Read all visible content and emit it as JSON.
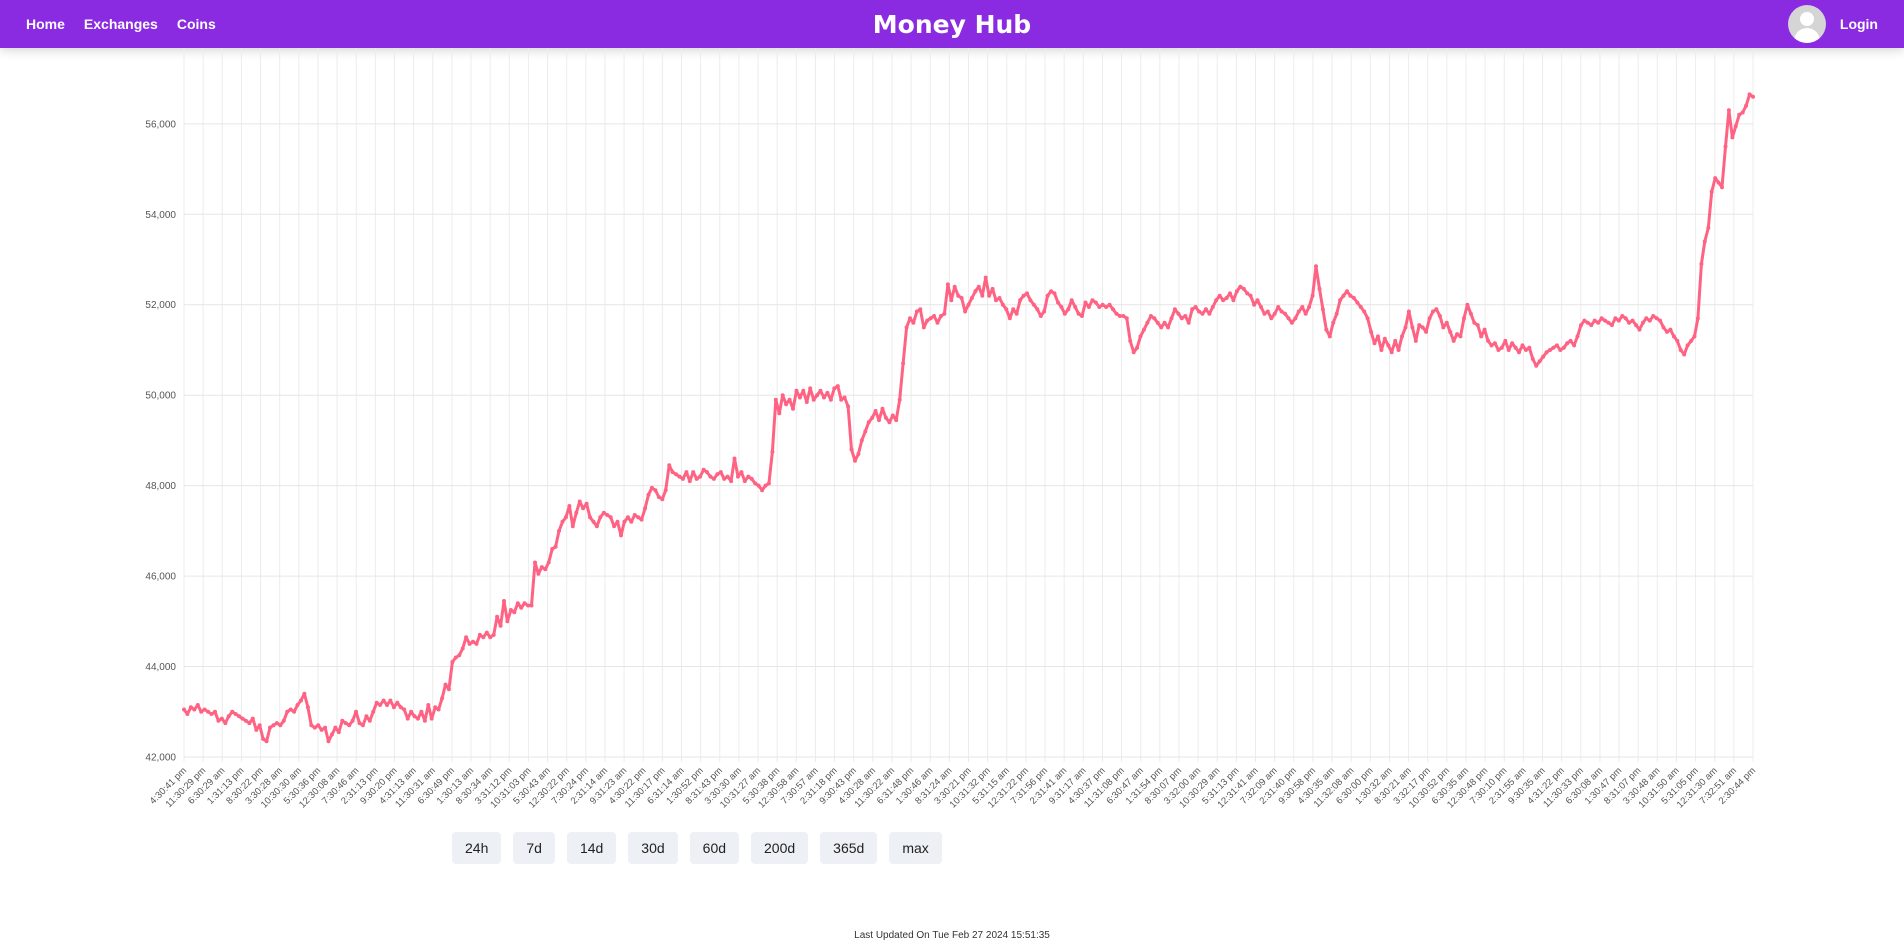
{
  "nav": {
    "links": [
      "Home",
      "Exchanges",
      "Coins"
    ],
    "brand": "Money Hub",
    "login": "Login"
  },
  "colors": {
    "navbar": "#8a2be2",
    "series": "#ff6384"
  },
  "range_buttons": [
    "24h",
    "7d",
    "14d",
    "30d",
    "60d",
    "200d",
    "365d",
    "max"
  ],
  "footer": {
    "last_updated": "Last Updated On Tue Feb 27 2024 15:51:35"
  },
  "chart_data": {
    "type": "line",
    "grid": true,
    "legend": "none",
    "ylim": [
      42000,
      57500
    ],
    "y_ticks": [
      42000,
      44000,
      46000,
      48000,
      50000,
      52000,
      54000,
      56000
    ],
    "y_tick_labels": [
      "42,000",
      "44,000",
      "46,000",
      "48,000",
      "50,000",
      "52,000",
      "54,000",
      "56,000"
    ],
    "x_tick_labels": [
      "4:30:41 pm",
      "11:30:29 pm",
      "6:30:29 am",
      "1:31:13 pm",
      "8:30:22 pm",
      "3:30:28 am",
      "10:30:30 am",
      "5:30:36 pm",
      "12:30:08 am",
      "7:30:46 am",
      "2:31:13 pm",
      "9:30:20 pm",
      "4:31:13 am",
      "11:30:31 am",
      "6:30:49 pm",
      "1:30:13 am",
      "8:30:34 am",
      "3:31:12 pm",
      "10:31:03 pm",
      "5:30:43 am",
      "12:30:22 pm",
      "7:30:24 pm",
      "2:31:14 am",
      "9:31:23 am",
      "4:30:22 pm",
      "11:30:17 pm",
      "6:31:14 am",
      "1:30:52 pm",
      "8:31:43 pm",
      "3:30:30 am",
      "10:31:27 am",
      "5:30:38 pm",
      "12:30:58 am",
      "7:30:57 am",
      "2:31:18 pm",
      "9:30:43 pm",
      "4:30:28 am",
      "11:30:22 am",
      "6:31:48 pm",
      "1:30:46 am",
      "8:31:24 am",
      "3:30:21 pm",
      "10:31:32 pm",
      "5:31:15 am",
      "12:31:22 pm",
      "7:31:56 pm",
      "2:31:41 am",
      "9:31:17 am",
      "4:30:37 pm",
      "11:31:08 pm",
      "6:30:47 am",
      "1:31:54 pm",
      "8:30:07 pm",
      "3:32:00 am",
      "10:30:29 am",
      "5:31:13 pm",
      "12:31:41 am",
      "7:32:09 am",
      "2:31:40 pm",
      "9:30:58 pm",
      "4:30:35 am",
      "11:32:08 am",
      "6:30:00 pm",
      "1:30:32 am",
      "8:30:21 am",
      "3:32:17 pm",
      "10:30:52 pm",
      "6:30:35 am",
      "12:30:48 pm",
      "7:30:10 pm",
      "2:31:55 am",
      "9:30:35 am",
      "4:31:22 pm",
      "11:30:33 pm",
      "6:30:08 am",
      "1:30:47 pm",
      "8:31:07 pm",
      "3:30:48 am",
      "10:31:50 am",
      "5:31:05 pm",
      "12:31:30 am",
      "7:32:51 am",
      "2:30:44 pm"
    ],
    "series": [
      {
        "values": [
          43050,
          42950,
          43100,
          43050,
          43150,
          43000,
          43050,
          43000,
          42950,
          43000,
          42800,
          42850,
          42750,
          42900,
          43000,
          42950,
          42900,
          42850,
          42800,
          42750,
          42850,
          42600,
          42700,
          42400,
          42350,
          42650,
          42700,
          42750,
          42700,
          42800,
          43000,
          43050,
          43000,
          43150,
          43250,
          43400,
          43100,
          42700,
          42650,
          42700,
          42600,
          42650,
          42350,
          42500,
          42650,
          42550,
          42800,
          42750,
          42700,
          42800,
          43000,
          42750,
          42700,
          42900,
          42800,
          43000,
          43200,
          43150,
          43250,
          43150,
          43250,
          43100,
          43200,
          43100,
          43050,
          42850,
          43000,
          42900,
          42850,
          43000,
          42800,
          43150,
          42850,
          43100,
          43050,
          43300,
          43600,
          43500,
          44100,
          44200,
          44250,
          44400,
          44650,
          44500,
          44550,
          44500,
          44700,
          44650,
          44750,
          44650,
          44700,
          45100,
          44900,
          45450,
          45000,
          45250,
          45200,
          45400,
          45300,
          45400,
          45350,
          45350,
          46300,
          46050,
          46200,
          46150,
          46300,
          46600,
          46650,
          47000,
          47200,
          47300,
          47550,
          47100,
          47400,
          47650,
          47500,
          47600,
          47300,
          47200,
          47100,
          47300,
          47400,
          47350,
          47300,
          47100,
          47200,
          46900,
          47200,
          47300,
          47200,
          47350,
          47300,
          47250,
          47500,
          47800,
          47950,
          47900,
          47750,
          47700,
          47900,
          48450,
          48300,
          48250,
          48200,
          48150,
          48300,
          48100,
          48300,
          48150,
          48200,
          48350,
          48300,
          48200,
          48150,
          48250,
          48300,
          48150,
          48200,
          48100,
          48600,
          48200,
          48300,
          48100,
          48200,
          48150,
          48050,
          48000,
          47900,
          48000,
          48050,
          48750,
          49900,
          49600,
          50000,
          49800,
          49900,
          49700,
          50100,
          49950,
          50100,
          49850,
          50150,
          49900,
          50000,
          50100,
          49950,
          50050,
          49900,
          50150,
          50200,
          49900,
          49950,
          49750,
          48800,
          48550,
          48700,
          49000,
          49200,
          49400,
          49500,
          49650,
          49450,
          49700,
          49500,
          49400,
          49550,
          49450,
          49900,
          50700,
          51500,
          51700,
          51600,
          51850,
          51900,
          51500,
          51650,
          51700,
          51750,
          51600,
          51750,
          51800,
          52450,
          52100,
          52400,
          52200,
          52150,
          51850,
          52000,
          52150,
          52300,
          52400,
          52200,
          52600,
          52200,
          52350,
          52100,
          52150,
          52000,
          51900,
          51700,
          51900,
          51800,
          52100,
          52200,
          52250,
          52100,
          52000,
          51900,
          51750,
          51850,
          52200,
          52300,
          52250,
          52050,
          51950,
          51800,
          51900,
          52100,
          51950,
          51800,
          51750,
          52050,
          51950,
          52100,
          52050,
          51950,
          52000,
          51950,
          52000,
          51900,
          51800,
          51750,
          51750,
          51700,
          51200,
          50950,
          51050,
          51300,
          51450,
          51600,
          51750,
          51700,
          51600,
          51500,
          51600,
          51500,
          51700,
          51900,
          51800,
          51700,
          51750,
          51600,
          51900,
          51950,
          51850,
          51800,
          51900,
          51800,
          51950,
          52100,
          52200,
          52100,
          52150,
          52250,
          52100,
          52300,
          52400,
          52350,
          52250,
          52200,
          52000,
          52100,
          51950,
          51800,
          51850,
          51700,
          51800,
          51950,
          51850,
          51800,
          51700,
          51600,
          51700,
          51850,
          51950,
          51800,
          51950,
          52200,
          52850,
          52350,
          51900,
          51450,
          51300,
          51600,
          51800,
          52100,
          52200,
          52300,
          52200,
          52150,
          52050,
          51950,
          51850,
          51700,
          51400,
          51150,
          51300,
          51000,
          51250,
          51100,
          50950,
          51200,
          51000,
          51300,
          51500,
          51850,
          51500,
          51200,
          51550,
          51500,
          51400,
          51700,
          51850,
          51900,
          51750,
          51500,
          51600,
          51400,
          51200,
          51350,
          51300,
          51700,
          52000,
          51800,
          51600,
          51550,
          51300,
          51450,
          51200,
          51100,
          51150,
          51000,
          51050,
          51200,
          51000,
          51150,
          51050,
          50950,
          51100,
          51000,
          51050,
          50800,
          50650,
          50750,
          50850,
          50950,
          51000,
          51050,
          51100,
          51000,
          51050,
          51150,
          51200,
          51100,
          51300,
          51550,
          51650,
          51600,
          51550,
          51650,
          51600,
          51700,
          51650,
          51600,
          51550,
          51700,
          51650,
          51750,
          51700,
          51600,
          51650,
          51550,
          51450,
          51600,
          51700,
          51650,
          51750,
          51700,
          51650,
          51500,
          51400,
          51450,
          51300,
          51200,
          51000,
          50900,
          51100,
          51200,
          51300,
          51700,
          52900,
          53400,
          53700,
          54500,
          54800,
          54700,
          54600,
          55500,
          56300,
          55700,
          55950,
          56200,
          56250,
          56400,
          56650,
          56600
        ],
        "color": "#ff6384"
      }
    ]
  }
}
